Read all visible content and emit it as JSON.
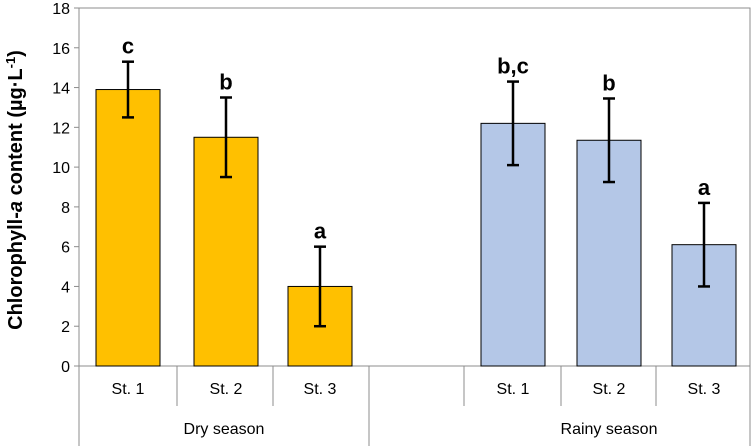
{
  "chart_data": {
    "type": "bar",
    "ylabel": {
      "pre": "Chlorophyll-",
      "italic": "a",
      "post": " content (µg·L",
      "sup": "-1",
      "close": ")"
    },
    "ylim": [
      0,
      18
    ],
    "yticks": [
      "0",
      "2",
      "4",
      "6",
      "8",
      "10",
      "12",
      "14",
      "16",
      "18"
    ],
    "groups": [
      {
        "name": "Dry season",
        "color": "#FFC000",
        "bars": [
          {
            "category": "St. 1",
            "value": 13.9,
            "error": 1.4,
            "label": "c"
          },
          {
            "category": "St. 2",
            "value": 11.5,
            "error": 2.0,
            "label": "b"
          },
          {
            "category": "St. 3",
            "value": 4.0,
            "error": 2.0,
            "label": "a"
          }
        ]
      },
      {
        "name": "Rainy season",
        "color": "#B4C7E7",
        "bars": [
          {
            "category": "St. 1",
            "value": 12.2,
            "error": 2.1,
            "label": "b,c"
          },
          {
            "category": "St. 2",
            "value": 11.35,
            "error": 2.1,
            "label": "b"
          },
          {
            "category": "St. 3",
            "value": 6.1,
            "error": 2.1,
            "label": "a"
          }
        ]
      }
    ]
  }
}
